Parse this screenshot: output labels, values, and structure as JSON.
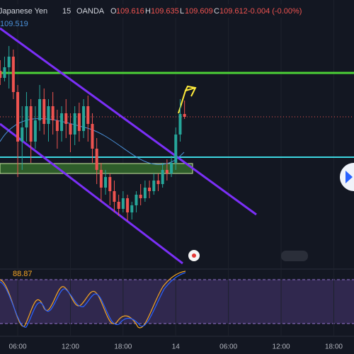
{
  "header": {
    "symbol": "Japanese Yen",
    "interval": "15",
    "source": "OANDA",
    "open_prefix": "O",
    "open": "109.616",
    "high_prefix": "H",
    "high": "109.635",
    "low_prefix": "L",
    "low": "109.609",
    "close_prefix": "C",
    "close": "109.612",
    "change": "-0.004 (-0.00%)"
  },
  "ma_label": "109.519",
  "oscillator_label": "88.87",
  "chart_data": {
    "type": "candlestick",
    "x": [
      4,
      4.5,
      5,
      5.5,
      6,
      6.5,
      7,
      7.5,
      8,
      8.5,
      9,
      9.5,
      10,
      10.5,
      11,
      11.5,
      12,
      12.5,
      13,
      13.5,
      14,
      14.5,
      15,
      15.5,
      16,
      16.5,
      17,
      17.5,
      18,
      18.5,
      19,
      19.5,
      20,
      20.5,
      21,
      21.5,
      22,
      22.5,
      23,
      23.5,
      24,
      24.5,
      25
    ],
    "open": [
      109.677,
      109.667,
      109.682,
      109.697,
      109.647,
      109.577,
      109.597,
      109.627,
      109.577,
      109.607,
      109.637,
      109.602,
      109.627,
      109.607,
      109.592,
      109.617,
      109.602,
      109.587,
      109.617,
      109.592,
      109.627,
      109.602,
      109.567,
      109.537,
      109.512,
      109.527,
      109.507,
      109.492,
      109.482,
      109.497,
      109.477,
      109.487,
      109.502,
      109.497,
      109.512,
      109.507,
      109.522,
      109.517,
      109.537,
      109.532,
      109.547,
      109.587,
      109.616
    ],
    "high": [
      109.692,
      109.697,
      109.712,
      109.707,
      109.657,
      109.627,
      109.647,
      109.637,
      109.627,
      109.657,
      109.652,
      109.637,
      109.647,
      109.622,
      109.627,
      109.637,
      109.617,
      109.627,
      109.632,
      109.637,
      109.642,
      109.617,
      109.582,
      109.547,
      109.537,
      109.532,
      109.522,
      109.502,
      109.507,
      109.502,
      109.492,
      109.507,
      109.517,
      109.522,
      109.522,
      109.532,
      109.532,
      109.547,
      109.552,
      109.557,
      109.597,
      109.637,
      109.635
    ],
    "low": [
      109.657,
      109.662,
      109.652,
      109.637,
      109.527,
      109.537,
      109.577,
      109.547,
      109.567,
      109.592,
      109.587,
      109.577,
      109.587,
      109.567,
      109.577,
      109.582,
      109.562,
      109.572,
      109.577,
      109.582,
      109.577,
      109.547,
      109.517,
      109.492,
      109.502,
      109.487,
      109.477,
      109.472,
      109.477,
      109.465,
      109.467,
      109.477,
      109.487,
      109.492,
      109.497,
      109.502,
      109.507,
      109.512,
      109.522,
      109.527,
      109.537,
      109.577,
      109.609
    ],
    "close": [
      109.667,
      109.682,
      109.697,
      109.647,
      109.577,
      109.597,
      109.627,
      109.577,
      109.607,
      109.637,
      109.602,
      109.627,
      109.607,
      109.592,
      109.617,
      109.602,
      109.587,
      109.617,
      109.592,
      109.627,
      109.602,
      109.567,
      109.537,
      109.512,
      109.527,
      109.507,
      109.492,
      109.482,
      109.497,
      109.477,
      109.487,
      109.502,
      109.497,
      109.512,
      109.507,
      109.522,
      109.517,
      109.537,
      109.532,
      109.547,
      109.587,
      109.616,
      109.612
    ],
    "up_color": "#26a69a",
    "down_color": "#ef5350",
    "xlim": [
      3.98,
      44.3
    ],
    "ylim": [
      109.402,
      109.757
    ],
    "xticks": [
      {
        "value": 6,
        "label": "06:00"
      },
      {
        "value": 12,
        "label": "12:00"
      },
      {
        "value": 18,
        "label": "18:00"
      },
      {
        "value": 24,
        "label": "14"
      },
      {
        "value": 30,
        "label": "06:00"
      },
      {
        "value": 36,
        "label": "12:00"
      },
      {
        "value": 42,
        "label": "18:00"
      }
    ],
    "grid": true
  }
}
